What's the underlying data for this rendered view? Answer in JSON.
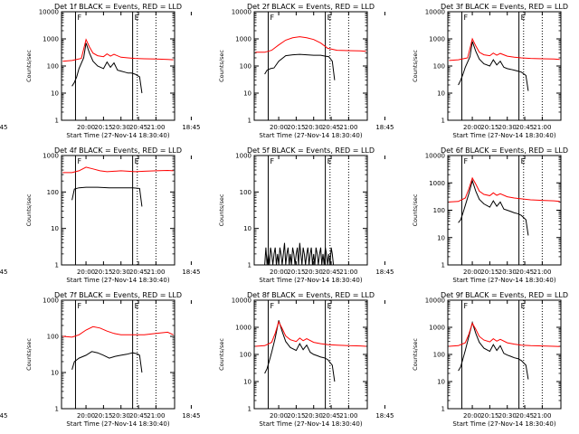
{
  "figure": {
    "background": "#ffffff",
    "axis_color": "#000000",
    "events_color": "#000000",
    "lld_color": "#ff0000",
    "ylabel": "Counts/sec",
    "xlabel": "Start Time (27-Nov-14 18:30:40)",
    "x_ticks": [
      "18:45",
      "20:00",
      "20:15",
      "20:30",
      "20:45",
      "21:00"
    ],
    "y_ticks": [
      "1",
      "10",
      "100",
      "1000",
      "10000"
    ]
  },
  "chart_data": [
    {
      "type": "line",
      "title": "Det 1f BLACK = Events, RED = LLD",
      "y_scale": "log",
      "ylim": [
        1,
        10000
      ],
      "xlim": [
        "19:39",
        "21:16"
      ],
      "markers": [
        {
          "x": "19:51",
          "label": "F"
        },
        {
          "x": "20:40",
          "label": "E"
        }
      ],
      "dotted_lines": [
        "20:44",
        "21:00"
      ],
      "series": [
        {
          "name": "Events",
          "color": "#000000",
          "x": [
            "19:48",
            "19:50",
            "19:52",
            "19:54",
            "19:58",
            "20:00",
            "20:03",
            "20:06",
            "20:10",
            "20:15",
            "20:18",
            "20:21",
            "20:24",
            "20:27",
            "20:30",
            "20:33",
            "20:36",
            "20:39",
            "20:42",
            "20:46",
            "20:48"
          ],
          "y": [
            18,
            25,
            40,
            80,
            200,
            700,
            300,
            150,
            100,
            80,
            140,
            90,
            130,
            70,
            65,
            60,
            55,
            55,
            50,
            40,
            10
          ]
        },
        {
          "name": "LLD",
          "color": "#ff0000",
          "x": [
            "19:40",
            "19:48",
            "19:56",
            "20:00",
            "20:03",
            "20:06",
            "20:10",
            "20:15",
            "20:18",
            "20:21",
            "20:24",
            "20:30",
            "20:36",
            "20:42",
            "20:50",
            "21:00",
            "21:10",
            "21:15"
          ],
          "y": [
            150,
            160,
            190,
            950,
            500,
            300,
            240,
            220,
            280,
            230,
            270,
            210,
            200,
            190,
            185,
            180,
            175,
            170
          ]
        }
      ]
    },
    {
      "type": "line",
      "title": "Det 2f BLACK = Events, RED = LLD",
      "y_scale": "log",
      "ylim": [
        1,
        10000
      ],
      "xlim": [
        "19:39",
        "21:16"
      ],
      "markers": [
        {
          "x": "19:51",
          "label": "F"
        },
        {
          "x": "20:40",
          "label": "E"
        }
      ],
      "dotted_lines": [
        "20:44",
        "21:00"
      ],
      "series": [
        {
          "name": "Events",
          "color": "#000000",
          "x": [
            "19:48",
            "19:50",
            "19:53",
            "19:56",
            "20:00",
            "20:06",
            "20:12",
            "20:18",
            "20:24",
            "20:30",
            "20:36",
            "20:40",
            "20:43",
            "20:46",
            "20:48"
          ],
          "y": [
            50,
            70,
            80,
            85,
            150,
            240,
            260,
            270,
            260,
            250,
            250,
            230,
            220,
            150,
            30
          ]
        },
        {
          "name": "LLD",
          "color": "#ff0000",
          "x": [
            "19:40",
            "19:48",
            "19:54",
            "20:00",
            "20:06",
            "20:12",
            "20:18",
            "20:24",
            "20:30",
            "20:36",
            "20:42",
            "20:50",
            "21:00",
            "21:10",
            "21:15"
          ],
          "y": [
            320,
            320,
            380,
            600,
            900,
            1100,
            1200,
            1100,
            950,
            700,
            450,
            380,
            370,
            360,
            350
          ]
        }
      ]
    },
    {
      "type": "line",
      "title": "Det 3f BLACK = Events, RED = LLD",
      "y_scale": "log",
      "ylim": [
        1,
        10000
      ],
      "xlim": [
        "19:39",
        "21:16"
      ],
      "markers": [
        {
          "x": "19:51",
          "label": "F"
        },
        {
          "x": "20:40",
          "label": "E"
        }
      ],
      "dotted_lines": [
        "20:44",
        "21:00"
      ],
      "series": [
        {
          "name": "Events",
          "color": "#000000",
          "x": [
            "19:48",
            "19:50",
            "19:52",
            "19:54",
            "19:58",
            "20:00",
            "20:03",
            "20:06",
            "20:10",
            "20:15",
            "20:18",
            "20:21",
            "20:24",
            "20:27",
            "20:30",
            "20:33",
            "20:36",
            "20:39",
            "20:42",
            "20:46",
            "20:48"
          ],
          "y": [
            20,
            30,
            50,
            90,
            220,
            800,
            350,
            180,
            120,
            100,
            170,
            110,
            150,
            90,
            80,
            75,
            70,
            65,
            60,
            45,
            12
          ]
        },
        {
          "name": "LLD",
          "color": "#ff0000",
          "x": [
            "19:40",
            "19:48",
            "19:56",
            "20:00",
            "20:03",
            "20:06",
            "20:10",
            "20:15",
            "20:18",
            "20:21",
            "20:24",
            "20:30",
            "20:36",
            "20:42",
            "20:50",
            "21:00",
            "21:10",
            "21:15"
          ],
          "y": [
            160,
            170,
            200,
            1000,
            550,
            320,
            260,
            240,
            300,
            250,
            290,
            230,
            210,
            200,
            190,
            185,
            180,
            175
          ]
        }
      ]
    },
    {
      "type": "line",
      "title": "Det 4f BLACK = Events, RED = LLD",
      "y_scale": "log",
      "ylim": [
        1,
        1000
      ],
      "xlim": [
        "19:39",
        "21:16"
      ],
      "markers": [
        {
          "x": "19:51",
          "label": "F"
        },
        {
          "x": "20:40",
          "label": "E"
        }
      ],
      "dotted_lines": [
        "20:44",
        "21:00"
      ],
      "series": [
        {
          "name": "Events",
          "color": "#000000",
          "x": [
            "19:48",
            "19:50",
            "19:54",
            "20:00",
            "20:10",
            "20:20",
            "20:30",
            "20:40",
            "20:46",
            "20:48"
          ],
          "y": [
            60,
            120,
            130,
            135,
            135,
            130,
            130,
            130,
            125,
            40
          ]
        },
        {
          "name": "LLD",
          "color": "#ff0000",
          "x": [
            "19:40",
            "19:48",
            "19:54",
            "20:00",
            "20:06",
            "20:12",
            "20:18",
            "20:24",
            "20:30",
            "20:36",
            "20:42",
            "20:50",
            "21:00",
            "21:10",
            "21:15"
          ],
          "y": [
            340,
            340,
            380,
            480,
            430,
            380,
            360,
            370,
            380,
            370,
            360,
            370,
            380,
            390,
            380
          ]
        }
      ]
    },
    {
      "type": "line",
      "title": "Det 5f BLACK = Events, RED = LLD",
      "y_scale": "log",
      "ylim": [
        1,
        1000
      ],
      "xlim": [
        "19:39",
        "21:16"
      ],
      "markers": [
        {
          "x": "19:51",
          "label": "F"
        },
        {
          "x": "20:40",
          "label": "E"
        }
      ],
      "dotted_lines": [
        "20:44",
        "21:00"
      ],
      "series": [
        {
          "name": "Events",
          "color": "#000000",
          "x": [
            "19:48",
            "19:49",
            "19:50",
            "19:51",
            "19:52",
            "19:53",
            "19:54",
            "19:55",
            "19:56",
            "19:57",
            "19:58",
            "19:59",
            "20:00",
            "20:01",
            "20:02",
            "20:03",
            "20:04",
            "20:05",
            "20:06",
            "20:07",
            "20:08",
            "20:09",
            "20:10",
            "20:11",
            "20:12",
            "20:13",
            "20:14",
            "20:15",
            "20:16",
            "20:17",
            "20:18",
            "20:19",
            "20:20",
            "20:21",
            "20:22",
            "20:23",
            "20:24",
            "20:25",
            "20:26",
            "20:27",
            "20:28",
            "20:29",
            "20:30",
            "20:31",
            "20:32",
            "20:33",
            "20:34",
            "20:35",
            "20:36",
            "20:37",
            "20:38",
            "20:39",
            "20:40",
            "20:41",
            "20:42",
            "20:43",
            "20:44",
            "20:45",
            "20:46",
            "20:47",
            "20:48"
          ],
          "y": [
            1,
            3,
            1,
            2,
            1,
            3,
            2,
            1,
            2,
            3,
            1,
            2,
            1,
            3,
            2,
            1,
            2,
            4,
            1,
            2,
            3,
            1,
            2,
            1,
            3,
            2,
            1,
            2,
            3,
            1,
            4,
            2,
            1,
            3,
            2,
            1,
            2,
            3,
            1,
            2,
            3,
            1,
            2,
            1,
            3,
            2,
            1,
            2,
            3,
            1,
            2,
            1,
            3,
            2,
            1,
            2,
            1,
            3,
            2,
            1,
            1
          ]
        }
      ]
    },
    {
      "type": "line",
      "title": "Det 6f BLACK = Events, RED = LLD",
      "y_scale": "log",
      "ylim": [
        1,
        10000
      ],
      "xlim": [
        "19:39",
        "21:16"
      ],
      "markers": [
        {
          "x": "19:51",
          "label": "F"
        },
        {
          "x": "20:40",
          "label": "E"
        }
      ],
      "dotted_lines": [
        "20:44",
        "21:00"
      ],
      "series": [
        {
          "name": "Events",
          "color": "#000000",
          "x": [
            "19:48",
            "19:50",
            "19:52",
            "19:54",
            "19:57",
            "20:00",
            "20:03",
            "20:06",
            "20:10",
            "20:15",
            "20:18",
            "20:21",
            "20:24",
            "20:27",
            "20:30",
            "20:33",
            "20:36",
            "20:39",
            "20:42",
            "20:46",
            "20:48"
          ],
          "y": [
            35,
            45,
            80,
            150,
            400,
            1200,
            500,
            250,
            170,
            130,
            220,
            140,
            200,
            110,
            100,
            90,
            80,
            75,
            65,
            45,
            12
          ]
        },
        {
          "name": "LLD",
          "color": "#ff0000",
          "x": [
            "19:40",
            "19:48",
            "19:54",
            "19:57",
            "20:00",
            "20:03",
            "20:06",
            "20:10",
            "20:15",
            "20:18",
            "20:21",
            "20:24",
            "20:30",
            "20:36",
            "20:42",
            "20:50",
            "21:00",
            "21:10",
            "21:15"
          ],
          "y": [
            200,
            210,
            280,
            600,
            1500,
            900,
            500,
            380,
            340,
            430,
            350,
            400,
            310,
            280,
            260,
            240,
            230,
            220,
            210
          ]
        }
      ]
    },
    {
      "type": "line",
      "title": "Det 7f BLACK = Events, RED = LLD",
      "y_scale": "log",
      "ylim": [
        1,
        1000
      ],
      "xlim": [
        "19:39",
        "21:16"
      ],
      "markers": [
        {
          "x": "19:51",
          "label": "F"
        },
        {
          "x": "20:40",
          "label": "E"
        }
      ],
      "dotted_lines": [
        "20:44",
        "21:00"
      ],
      "series": [
        {
          "name": "Events",
          "color": "#000000",
          "x": [
            "19:48",
            "19:50",
            "19:54",
            "20:00",
            "20:05",
            "20:10",
            "20:15",
            "20:20",
            "20:25",
            "20:30",
            "20:35",
            "20:40",
            "20:44",
            "20:46",
            "20:48"
          ],
          "y": [
            12,
            20,
            25,
            30,
            38,
            35,
            30,
            25,
            28,
            30,
            32,
            35,
            33,
            30,
            10
          ]
        },
        {
          "name": "LLD",
          "color": "#ff0000",
          "x": [
            "19:40",
            "19:48",
            "19:54",
            "20:00",
            "20:06",
            "20:12",
            "20:18",
            "20:24",
            "20:30",
            "20:36",
            "20:42",
            "20:50",
            "21:00",
            "21:10",
            "21:15"
          ],
          "y": [
            100,
            95,
            110,
            150,
            185,
            170,
            140,
            120,
            110,
            110,
            110,
            110,
            120,
            130,
            110
          ]
        }
      ]
    },
    {
      "type": "line",
      "title": "Det 8f BLACK = Events, RED = LLD",
      "y_scale": "log",
      "ylim": [
        1,
        10000
      ],
      "xlim": [
        "19:39",
        "21:16"
      ],
      "markers": [
        {
          "x": "19:51",
          "label": "F"
        },
        {
          "x": "20:40",
          "label": "E"
        }
      ],
      "dotted_lines": [
        "20:44",
        "21:00"
      ],
      "series": [
        {
          "name": "Events",
          "color": "#000000",
          "x": [
            "19:48",
            "19:50",
            "19:52",
            "19:54",
            "19:57",
            "20:00",
            "20:03",
            "20:06",
            "20:10",
            "20:15",
            "20:18",
            "20:21",
            "20:24",
            "20:27",
            "20:30",
            "20:33",
            "20:36",
            "20:39",
            "20:42",
            "20:46",
            "20:48"
          ],
          "y": [
            20,
            30,
            60,
            120,
            400,
            1800,
            700,
            300,
            180,
            140,
            250,
            150,
            220,
            120,
            100,
            90,
            80,
            75,
            65,
            40,
            10
          ]
        },
        {
          "name": "LLD",
          "color": "#ff0000",
          "x": [
            "19:40",
            "19:48",
            "19:54",
            "19:57",
            "20:00",
            "20:03",
            "20:06",
            "20:10",
            "20:15",
            "20:18",
            "20:21",
            "20:24",
            "20:30",
            "20:36",
            "20:42",
            "20:50",
            "21:00",
            "21:10",
            "21:15"
          ],
          "y": [
            200,
            210,
            280,
            600,
            1600,
            900,
            480,
            350,
            300,
            400,
            320,
            380,
            280,
            250,
            230,
            220,
            210,
            205,
            200
          ]
        }
      ]
    },
    {
      "type": "line",
      "title": "Det 9f BLACK = Events, RED = LLD",
      "y_scale": "log",
      "ylim": [
        1,
        10000
      ],
      "xlim": [
        "19:39",
        "21:16"
      ],
      "markers": [
        {
          "x": "19:51",
          "label": "F"
        },
        {
          "x": "20:40",
          "label": "E"
        }
      ],
      "dotted_lines": [
        "20:44",
        "21:00"
      ],
      "series": [
        {
          "name": "Events",
          "color": "#000000",
          "x": [
            "19:48",
            "19:50",
            "19:52",
            "19:54",
            "19:57",
            "20:00",
            "20:03",
            "20:06",
            "20:10",
            "20:15",
            "20:18",
            "20:21",
            "20:24",
            "20:27",
            "20:30",
            "20:33",
            "20:36",
            "20:39",
            "20:42",
            "20:46",
            "20:48"
          ],
          "y": [
            25,
            35,
            70,
            140,
            450,
            1500,
            600,
            280,
            170,
            130,
            230,
            140,
            210,
            110,
            95,
            85,
            75,
            70,
            60,
            40,
            12
          ]
        },
        {
          "name": "LLD",
          "color": "#ff0000",
          "x": [
            "19:40",
            "19:48",
            "19:54",
            "19:57",
            "20:00",
            "20:03",
            "20:06",
            "20:10",
            "20:15",
            "20:18",
            "20:21",
            "20:24",
            "20:30",
            "20:36",
            "20:42",
            "20:50",
            "21:00",
            "21:10",
            "21:15"
          ],
          "y": [
            200,
            210,
            270,
            550,
            1400,
            850,
            460,
            340,
            290,
            380,
            310,
            360,
            270,
            240,
            220,
            210,
            205,
            200,
            195
          ]
        }
      ]
    }
  ]
}
